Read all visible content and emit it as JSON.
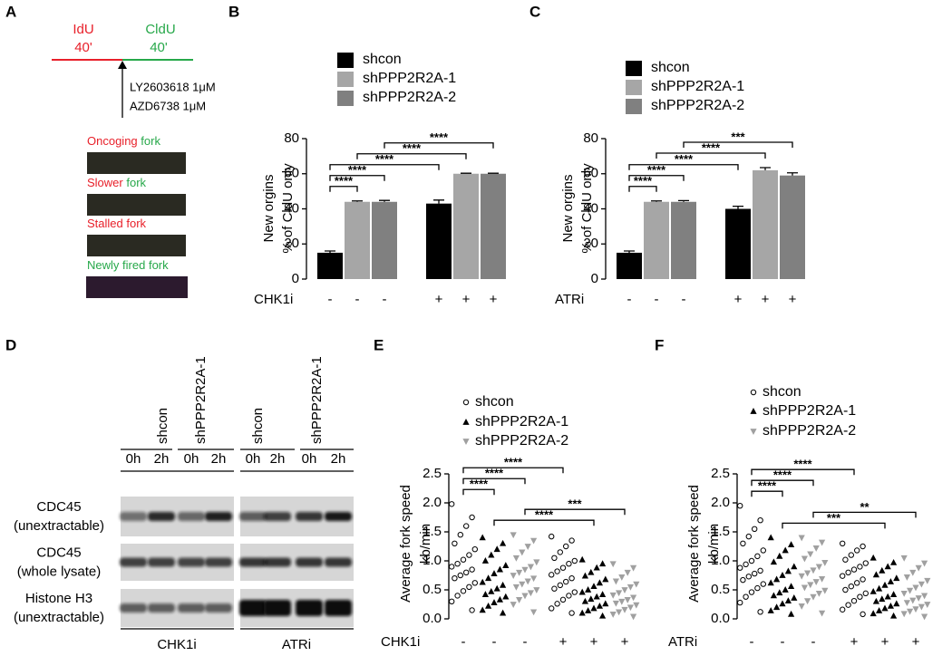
{
  "panel_a": {
    "label": "A",
    "idu": "IdU",
    "idu_time": "40'",
    "cldu": "CldU",
    "cldu_time": "40'",
    "drugs": [
      "LY2603618 1μM",
      "AZD6738 1μM"
    ],
    "forks": [
      [
        {
          "text": "Oncoging",
          "color": "#e8202a"
        },
        {
          "text": "fork",
          "color": "#27a84a"
        }
      ],
      [
        {
          "text": "Slower",
          "color": "#e8202a"
        },
        {
          "text": "fork",
          "color": "#27a84a"
        }
      ],
      [
        {
          "text": "Stalled",
          "color": "#e8202a"
        },
        {
          "text": "fork",
          "color": "#e8202a"
        }
      ],
      [
        {
          "text": "Newly",
          "color": "#27a84a"
        },
        {
          "text": "fired",
          "color": "#27a84a"
        },
        {
          "text": "fork",
          "color": "#27a84a"
        }
      ]
    ]
  },
  "panel_d": {
    "label": "D",
    "samples": [
      "shcon",
      "shPPP2R2A-1",
      "shcon",
      "shPPP2R2A-1"
    ],
    "times": [
      "0h",
      "2h",
      "0h",
      "2h",
      "0h",
      "2h",
      "0h",
      "2h"
    ],
    "rows": [
      [
        "CDC45",
        "(unextractable)"
      ],
      [
        "CDC45",
        "(whole lysate)"
      ],
      [
        "Histone H3",
        "(unextractable)"
      ]
    ],
    "treatments": [
      "CHK1i",
      "ATRi"
    ]
  },
  "chart_data": [
    {
      "panel": "B",
      "type": "bar",
      "ylabel": [
        "New orgins",
        "% of CldU only"
      ],
      "treatment": "CHK1i",
      "categories": [
        "-",
        "+"
      ],
      "ylim": [
        0,
        80
      ],
      "yticks": [
        0,
        20,
        40,
        60,
        80
      ],
      "series": [
        {
          "name": "shcon",
          "color": "#000000",
          "values": [
            15,
            43
          ],
          "errors": [
            1,
            2
          ]
        },
        {
          "name": "shPPP2R2A-1",
          "color": "#a6a6a6",
          "values": [
            44,
            60
          ],
          "errors": [
            0.5,
            0.3
          ]
        },
        {
          "name": "shPPP2R2A-2",
          "color": "#808080",
          "values": [
            44,
            60
          ],
          "errors": [
            0.8,
            0.3
          ]
        }
      ],
      "comparisons": [
        {
          "label": "****",
          "bars": [
            0,
            1
          ]
        },
        {
          "label": "****",
          "bars": [
            0,
            2
          ]
        },
        {
          "label": "****",
          "bars": [
            0,
            3
          ]
        },
        {
          "label": "****",
          "bars": [
            1,
            4
          ]
        },
        {
          "label": "****",
          "bars": [
            2,
            5
          ]
        }
      ]
    },
    {
      "panel": "C",
      "type": "bar",
      "ylabel": [
        "New orgins",
        "% of CldU only"
      ],
      "treatment": "ATRi",
      "categories": [
        "-",
        "+"
      ],
      "ylim": [
        0,
        80
      ],
      "yticks": [
        0,
        20,
        40,
        60,
        80
      ],
      "series": [
        {
          "name": "shcon",
          "color": "#000000",
          "values": [
            15,
            40
          ],
          "errors": [
            1,
            1.5
          ]
        },
        {
          "name": "shPPP2R2A-1",
          "color": "#a6a6a6",
          "values": [
            44,
            62
          ],
          "errors": [
            0.5,
            1.5
          ]
        },
        {
          "name": "shPPP2R2A-2",
          "color": "#808080",
          "values": [
            44,
            59
          ],
          "errors": [
            0.7,
            1.5
          ]
        }
      ],
      "comparisons": [
        {
          "label": "****",
          "bars": [
            0,
            1
          ]
        },
        {
          "label": "****",
          "bars": [
            0,
            2
          ]
        },
        {
          "label": "****",
          "bars": [
            0,
            3
          ]
        },
        {
          "label": "****",
          "bars": [
            1,
            4
          ]
        },
        {
          "label": "***",
          "bars": [
            2,
            5
          ]
        }
      ]
    },
    {
      "panel": "E",
      "type": "dot",
      "ylabel": [
        "Average fork speed",
        "kb/min"
      ],
      "treatment": "CHK1i",
      "categories": [
        "-",
        "+"
      ],
      "ylim": [
        0,
        2.5
      ],
      "yticks": [
        {
          "value": 0,
          "label": "0.0"
        },
        {
          "value": 0.5,
          "label": "0.5"
        },
        {
          "value": 1,
          "label": "1.0"
        },
        {
          "value": 1.5,
          "label": "1.5"
        },
        {
          "value": 2,
          "label": "2.0"
        },
        {
          "value": 2.5,
          "label": "2.5"
        }
      ],
      "series": [
        {
          "name": "shcon",
          "color": "#000000",
          "marker": "circle",
          "values": [
            [
              1.98,
              1.75,
              1.6,
              1.45,
              1.3,
              1.2,
              1.1,
              1.02,
              0.95,
              0.9,
              0.85,
              0.8,
              0.75,
              0.7,
              0.62,
              0.55,
              0.48,
              0.4,
              0.3,
              0.15
            ],
            [
              1.42,
              1.35,
              1.25,
              1.15,
              1.05,
              1.0,
              0.95,
              0.88,
              0.82,
              0.76,
              0.7,
              0.64,
              0.58,
              0.52,
              0.46,
              0.4,
              0.33,
              0.26,
              0.18,
              0.1
            ]
          ]
        },
        {
          "name": "shPPP2R2A-1",
          "color": "#000000",
          "marker": "triangle",
          "values": [
            [
              1.4,
              1.3,
              1.2,
              1.1,
              1.0,
              0.92,
              0.85,
              0.78,
              0.7,
              0.63,
              0.58,
              0.52,
              0.47,
              0.42,
              0.38,
              0.33,
              0.28,
              0.22,
              0.15,
              0.1
            ],
            [
              1.02,
              0.95,
              0.88,
              0.8,
              0.74,
              0.68,
              0.62,
              0.56,
              0.5,
              0.46,
              0.42,
              0.38,
              0.34,
              0.3,
              0.26,
              0.22,
              0.18,
              0.14,
              0.1,
              0.05
            ]
          ]
        },
        {
          "name": "shPPP2R2A-2",
          "color": "#a0a0a0",
          "marker": "triangle-down",
          "values": [
            [
              1.45,
              1.35,
              1.25,
              1.15,
              1.05,
              0.98,
              0.9,
              0.85,
              0.8,
              0.75,
              0.7,
              0.65,
              0.6,
              0.55,
              0.5,
              0.45,
              0.4,
              0.33,
              0.25,
              0.12
            ],
            [
              0.95,
              0.88,
              0.8,
              0.72,
              0.65,
              0.6,
              0.55,
              0.5,
              0.45,
              0.41,
              0.37,
              0.33,
              0.3,
              0.27,
              0.24,
              0.2,
              0.16,
              0.12,
              0.08,
              0.04
            ]
          ]
        }
      ],
      "comparisons": [
        {
          "label": "****",
          "bars": [
            0,
            1
          ]
        },
        {
          "label": "****",
          "bars": [
            0,
            2
          ]
        },
        {
          "label": "****",
          "bars": [
            0,
            3
          ]
        },
        {
          "label": "****",
          "bars": [
            1,
            4
          ]
        },
        {
          "label": "***",
          "bars": [
            2,
            5
          ]
        }
      ]
    },
    {
      "panel": "F",
      "type": "dot",
      "ylabel": [
        "Average fork speed",
        "kb/min"
      ],
      "treatment": "ATRi",
      "categories": [
        "-",
        "+"
      ],
      "ylim": [
        0,
        2.5
      ],
      "yticks": [
        {
          "value": 0,
          "label": "0.0"
        },
        {
          "value": 0.5,
          "label": "0.5"
        },
        {
          "value": 1,
          "label": "1.0"
        },
        {
          "value": 1.5,
          "label": "1.5"
        },
        {
          "value": 2,
          "label": "2.0"
        },
        {
          "value": 2.5,
          "label": "2.5"
        }
      ],
      "series": [
        {
          "name": "shcon",
          "color": "#000000",
          "marker": "circle",
          "values": [
            [
              1.95,
              1.7,
              1.55,
              1.42,
              1.3,
              1.18,
              1.08,
              1.0,
              0.94,
              0.88,
              0.83,
              0.78,
              0.73,
              0.67,
              0.6,
              0.53,
              0.46,
              0.38,
              0.28,
              0.12
            ],
            [
              1.3,
              1.25,
              1.18,
              1.1,
              1.02,
              0.96,
              0.9,
              0.85,
              0.8,
              0.74,
              0.68,
              0.62,
              0.56,
              0.5,
              0.44,
              0.38,
              0.31,
              0.24,
              0.16,
              0.08
            ]
          ]
        },
        {
          "name": "shPPP2R2A-1",
          "color": "#000000",
          "marker": "triangle",
          "values": [
            [
              1.4,
              1.28,
              1.18,
              1.08,
              0.98,
              0.9,
              0.82,
              0.75,
              0.68,
              0.62,
              0.56,
              0.5,
              0.45,
              0.4,
              0.36,
              0.31,
              0.26,
              0.2,
              0.14,
              0.08
            ],
            [
              1.05,
              0.97,
              0.9,
              0.83,
              0.76,
              0.7,
              0.64,
              0.58,
              0.52,
              0.47,
              0.42,
              0.38,
              0.34,
              0.3,
              0.26,
              0.22,
              0.18,
              0.14,
              0.09,
              0.05
            ]
          ]
        },
        {
          "name": "shPPP2R2A-2",
          "color": "#a0a0a0",
          "marker": "triangle-down",
          "values": [
            [
              1.4,
              1.32,
              1.22,
              1.12,
              1.04,
              0.97,
              0.9,
              0.84,
              0.79,
              0.74,
              0.69,
              0.64,
              0.59,
              0.54,
              0.49,
              0.44,
              0.38,
              0.31,
              0.22,
              0.1
            ],
            [
              1.05,
              0.96,
              0.88,
              0.8,
              0.72,
              0.66,
              0.6,
              0.54,
              0.49,
              0.44,
              0.4,
              0.36,
              0.32,
              0.28,
              0.25,
              0.21,
              0.17,
              0.13,
              0.09,
              0.04
            ]
          ]
        }
      ],
      "comparisons": [
        {
          "label": "****",
          "bars": [
            0,
            1
          ]
        },
        {
          "label": "****",
          "bars": [
            0,
            2
          ]
        },
        {
          "label": "****",
          "bars": [
            0,
            3
          ]
        },
        {
          "label": "***",
          "bars": [
            1,
            4
          ]
        },
        {
          "label": "**",
          "bars": [
            2,
            5
          ]
        }
      ]
    }
  ]
}
